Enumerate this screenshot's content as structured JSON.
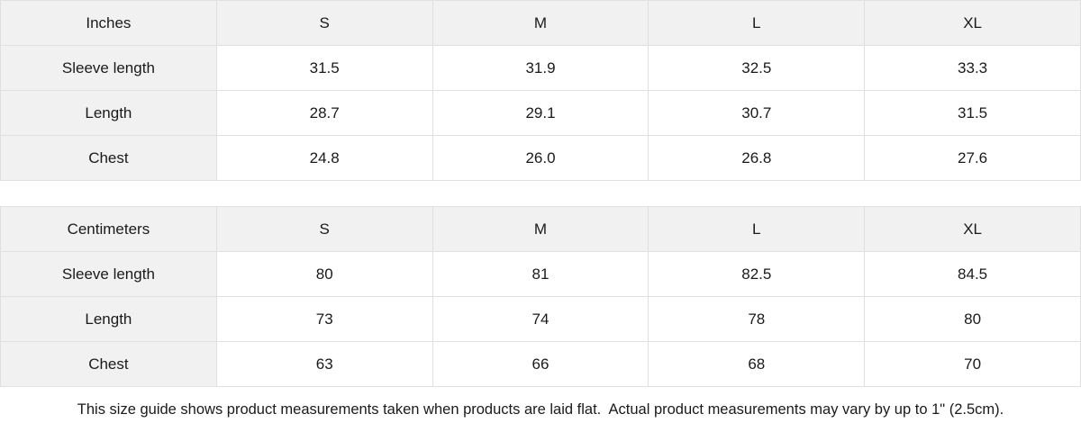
{
  "colors": {
    "header_bg": "#f1f1f1",
    "cell_bg": "#ffffff",
    "border": "#e0e0e0",
    "text": "#1a1a1a"
  },
  "tables": [
    {
      "unit": "Inches",
      "header": [
        "Inches",
        "S",
        "M",
        "L",
        "XL"
      ],
      "rows": [
        {
          "label": "Sleeve length",
          "values": [
            "31.5",
            "31.9",
            "32.5",
            "33.3"
          ]
        },
        {
          "label": "Length",
          "values": [
            "28.7",
            "29.1",
            "30.7",
            "31.5"
          ]
        },
        {
          "label": "Chest",
          "values": [
            "24.8",
            "26.0",
            "26.8",
            "27.6"
          ]
        }
      ]
    },
    {
      "unit": "Centimeters",
      "header": [
        "Centimeters",
        "S",
        "M",
        "L",
        "XL"
      ],
      "rows": [
        {
          "label": "Sleeve length",
          "values": [
            "80",
            "81",
            "82.5",
            "84.5"
          ]
        },
        {
          "label": "Length",
          "values": [
            "73",
            "74",
            "78",
            "80"
          ]
        },
        {
          "label": "Chest",
          "values": [
            "63",
            "66",
            "68",
            "70"
          ]
        }
      ]
    }
  ],
  "footnote": "This size guide shows product measurements taken when products are laid flat.  Actual product measurements may vary by up to 1\" (2.5cm)."
}
